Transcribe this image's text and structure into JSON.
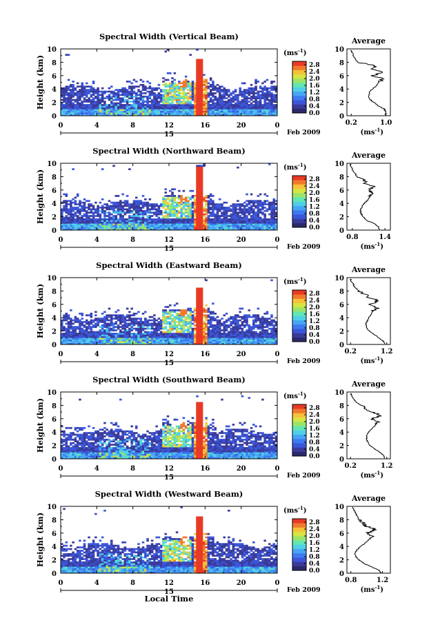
{
  "colors": {
    "colormap": [
      "#2a2a6a",
      "#3a3a9a",
      "#3b56d8",
      "#3d7af0",
      "#47a5f5",
      "#4fd0e8",
      "#62e6b2",
      "#9be46a",
      "#d6e542",
      "#f6c23a",
      "#f07a2c",
      "#e83a26"
    ]
  },
  "chart_data": [
    {
      "type": "heatmap",
      "title": "Spectral Width (Vertical Beam)",
      "ylabel": "Height (km)",
      "x_ticks": [
        "0",
        "4",
        "8",
        "12",
        "16",
        "20",
        "0"
      ],
      "y_ticks": [
        "0",
        "2",
        "4",
        "6",
        "8",
        "10"
      ],
      "xlim": [
        0,
        24
      ],
      "ylim": [
        0,
        10
      ],
      "date_label": "15",
      "month_label": "Feb 2009",
      "colorbar": {
        "unit": "(ms",
        "unit_exp": "-1",
        "unit_close": ")",
        "ticks": [
          "0.0",
          "0.4",
          "0.8",
          "1.2",
          "1.6",
          "2.0",
          "2.4",
          "2.8"
        ],
        "range": [
          0,
          3.0
        ]
      },
      "profile": {
        "title": "Average",
        "xlabel": "(ms",
        "xlabel_exp": "-1",
        "xlabel_close": ")",
        "x_ticks": [
          "0.2",
          "1.0"
        ],
        "x_tick_values": [
          0.2,
          1.0
        ],
        "xlim": [
          0.1,
          1.1
        ],
        "y_ticks": [
          "0",
          "2",
          "4",
          "6",
          "8",
          "10"
        ],
        "points": [
          [
            0.98,
            0.1
          ],
          [
            1.0,
            0.5
          ],
          [
            0.96,
            1.0
          ],
          [
            0.82,
            1.5
          ],
          [
            0.72,
            2.0
          ],
          [
            0.62,
            2.5
          ],
          [
            0.6,
            3.0
          ],
          [
            0.62,
            3.5
          ],
          [
            0.68,
            4.0
          ],
          [
            0.78,
            4.5
          ],
          [
            0.84,
            5.0
          ],
          [
            0.92,
            5.5
          ],
          [
            0.7,
            6.0
          ],
          [
            0.95,
            6.5
          ],
          [
            0.68,
            7.0
          ],
          [
            0.75,
            7.5
          ],
          [
            0.35,
            8.0
          ],
          [
            0.3,
            8.5
          ],
          [
            0.25,
            9.0
          ],
          [
            0.22,
            9.5
          ],
          [
            0.2,
            9.8
          ]
        ]
      }
    },
    {
      "type": "heatmap",
      "title": "Spectral Width (Northward Beam)",
      "ylabel": "Height (km)",
      "x_ticks": [
        "0",
        "4",
        "8",
        "12",
        "16",
        "20",
        "0"
      ],
      "y_ticks": [
        "0",
        "2",
        "4",
        "6",
        "8",
        "10"
      ],
      "xlim": [
        0,
        24
      ],
      "ylim": [
        0,
        10
      ],
      "date_label": "15",
      "month_label": "Feb 2009",
      "colorbar": {
        "unit": "(ms",
        "unit_exp": "-1",
        "unit_close": ")",
        "ticks": [
          "0.0",
          "0.4",
          "0.8",
          "1.2",
          "1.6",
          "2.0",
          "2.4",
          "2.8"
        ],
        "range": [
          0,
          3.0
        ]
      },
      "profile": {
        "title": "Average",
        "xlabel": "(ms",
        "xlabel_exp": "-1",
        "xlabel_close": ")",
        "x_ticks": [
          "0.8",
          "1.4"
        ],
        "x_tick_values": [
          0.8,
          1.4
        ],
        "xlim": [
          0.7,
          1.5
        ],
        "y_ticks": [
          "0",
          "2",
          "4",
          "6",
          "8",
          "10"
        ],
        "points": [
          [
            1.3,
            0.1
          ],
          [
            1.28,
            0.5
          ],
          [
            1.2,
            1.0
          ],
          [
            1.05,
            1.5
          ],
          [
            1.0,
            2.0
          ],
          [
            0.96,
            2.5
          ],
          [
            0.95,
            3.0
          ],
          [
            0.98,
            3.5
          ],
          [
            1.02,
            4.0
          ],
          [
            1.08,
            4.5
          ],
          [
            1.12,
            5.0
          ],
          [
            1.2,
            5.5
          ],
          [
            1.1,
            6.0
          ],
          [
            1.22,
            6.5
          ],
          [
            1.05,
            7.0
          ],
          [
            1.0,
            7.5
          ],
          [
            0.88,
            8.0
          ],
          [
            0.85,
            8.5
          ],
          [
            0.8,
            9.0
          ],
          [
            0.78,
            9.5
          ],
          [
            0.76,
            9.9
          ]
        ]
      }
    },
    {
      "type": "heatmap",
      "title": "Spectral Width (Eastward Beam)",
      "ylabel": "Height (km)",
      "x_ticks": [
        "0",
        "4",
        "8",
        "12",
        "16",
        "20",
        "0"
      ],
      "y_ticks": [
        "0",
        "2",
        "4",
        "6",
        "8",
        "10"
      ],
      "xlim": [
        0,
        24
      ],
      "ylim": [
        0,
        10
      ],
      "date_label": "15",
      "month_label": "Feb 2009",
      "colorbar": {
        "unit": "(ms",
        "unit_exp": "-1",
        "unit_close": ")",
        "ticks": [
          "0.0",
          "0.4",
          "0.8",
          "1.2",
          "1.6",
          "2.0",
          "2.4",
          "2.8"
        ],
        "range": [
          0,
          3.0
        ]
      },
      "profile": {
        "title": "Average",
        "xlabel": "(ms",
        "xlabel_exp": "-1",
        "xlabel_close": ")",
        "x_ticks": [
          "0.2",
          "1.2"
        ],
        "x_tick_values": [
          0.2,
          1.2
        ],
        "xlim": [
          0.1,
          1.3
        ],
        "y_ticks": [
          "0",
          "2",
          "4",
          "6",
          "8",
          "10"
        ],
        "points": [
          [
            1.15,
            0.1
          ],
          [
            1.1,
            0.5
          ],
          [
            0.98,
            1.0
          ],
          [
            0.85,
            1.5
          ],
          [
            0.72,
            2.0
          ],
          [
            0.64,
            2.5
          ],
          [
            0.62,
            3.0
          ],
          [
            0.66,
            3.5
          ],
          [
            0.7,
            4.0
          ],
          [
            0.76,
            4.5
          ],
          [
            0.82,
            5.0
          ],
          [
            0.95,
            5.5
          ],
          [
            0.7,
            6.0
          ],
          [
            0.98,
            6.5
          ],
          [
            0.72,
            7.0
          ],
          [
            0.6,
            7.5
          ],
          [
            0.45,
            8.0
          ],
          [
            0.32,
            8.5
          ],
          [
            0.28,
            9.0
          ],
          [
            0.22,
            9.5
          ],
          [
            0.2,
            9.8
          ]
        ]
      }
    },
    {
      "type": "heatmap",
      "title": "Spectral Width (Southward Beam)",
      "ylabel": "Height (km)",
      "x_ticks": [
        "0",
        "4",
        "8",
        "12",
        "16",
        "20",
        "0"
      ],
      "y_ticks": [
        "0",
        "2",
        "4",
        "6",
        "8",
        "10"
      ],
      "xlim": [
        0,
        24
      ],
      "ylim": [
        0,
        10
      ],
      "date_label": "15",
      "month_label": "Feb 2009",
      "colorbar": {
        "unit": "(ms",
        "unit_exp": "-1",
        "unit_close": ")",
        "ticks": [
          "0.0",
          "0.4",
          "0.8",
          "1.2",
          "1.6",
          "2.0",
          "2.4",
          "2.8"
        ],
        "range": [
          0,
          3.0
        ]
      },
      "profile": {
        "title": "Average",
        "xlabel": "(ms",
        "xlabel_exp": "-1",
        "xlabel_close": ")",
        "x_ticks": [
          "0.2",
          "1.2"
        ],
        "x_tick_values": [
          0.2,
          1.2
        ],
        "xlim": [
          0.1,
          1.3
        ],
        "y_ticks": [
          "0",
          "2",
          "4",
          "6",
          "8",
          "10"
        ],
        "points": [
          [
            1.15,
            0.1
          ],
          [
            1.12,
            0.5
          ],
          [
            1.0,
            1.0
          ],
          [
            0.86,
            1.5
          ],
          [
            0.74,
            2.0
          ],
          [
            0.68,
            2.5
          ],
          [
            0.64,
            3.0
          ],
          [
            0.66,
            3.5
          ],
          [
            0.7,
            4.0
          ],
          [
            0.8,
            4.5
          ],
          [
            0.88,
            5.0
          ],
          [
            0.98,
            5.5
          ],
          [
            0.78,
            6.0
          ],
          [
            1.05,
            6.5
          ],
          [
            0.8,
            7.0
          ],
          [
            0.62,
            7.5
          ],
          [
            0.48,
            8.0
          ],
          [
            0.36,
            8.5
          ],
          [
            0.28,
            9.0
          ],
          [
            0.24,
            9.5
          ],
          [
            0.2,
            9.8
          ]
        ]
      }
    },
    {
      "type": "heatmap",
      "title": "Spectral Width (Westward Beam)",
      "ylabel": "Height (km)",
      "xlabel": "Local Time",
      "x_ticks": [
        "0",
        "4",
        "8",
        "12",
        "16",
        "20",
        "0"
      ],
      "y_ticks": [
        "0",
        "2",
        "4",
        "6",
        "8",
        "10"
      ],
      "xlim": [
        0,
        24
      ],
      "ylim": [
        0,
        10
      ],
      "date_label": "15",
      "month_label": "Feb 2009",
      "colorbar": {
        "unit": "(ms",
        "unit_exp": "-1",
        "unit_close": ")",
        "ticks": [
          "0.0",
          "0.4",
          "0.8",
          "1.2",
          "1.6",
          "2.0",
          "2.4",
          "2.8"
        ],
        "range": [
          0,
          3.0
        ]
      },
      "profile": {
        "title": "Average",
        "xlabel": "(ms",
        "xlabel_exp": "-1",
        "xlabel_close": ")",
        "x_ticks": [
          "0.8",
          "1.2"
        ],
        "x_tick_values": [
          0.8,
          1.2
        ],
        "xlim": [
          0.75,
          1.3
        ],
        "y_ticks": [
          "0",
          "2",
          "4",
          "6",
          "8",
          "10"
        ],
        "points": [
          [
            1.18,
            0.1
          ],
          [
            1.15,
            0.5
          ],
          [
            1.05,
            1.0
          ],
          [
            0.96,
            1.5
          ],
          [
            0.9,
            2.0
          ],
          [
            0.86,
            2.5
          ],
          [
            0.85,
            3.0
          ],
          [
            0.88,
            3.5
          ],
          [
            0.92,
            4.0
          ],
          [
            0.98,
            4.5
          ],
          [
            1.02,
            5.0
          ],
          [
            1.1,
            5.5
          ],
          [
            1.0,
            6.0
          ],
          [
            1.12,
            6.5
          ],
          [
            1.0,
            7.0
          ],
          [
            0.95,
            7.5
          ],
          [
            0.9,
            8.0
          ],
          [
            0.88,
            8.5
          ],
          [
            0.86,
            9.0
          ],
          [
            0.84,
            9.5
          ],
          [
            0.82,
            9.9
          ]
        ]
      }
    }
  ]
}
